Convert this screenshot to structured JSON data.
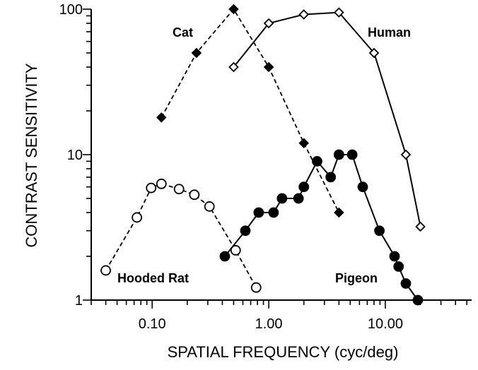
{
  "chart_data": {
    "type": "line",
    "title": "",
    "xlabel": "SPATIAL FREQUENCY (cyc/deg)",
    "ylabel": "CONTRAST SENSITIVITY",
    "xscale": "log",
    "yscale": "log",
    "xlim": [
      0.03,
      55
    ],
    "ylim": [
      1,
      100
    ],
    "xticks": [
      {
        "value": 0.1,
        "label": "0.10"
      },
      {
        "value": 1,
        "label": "1.00"
      },
      {
        "value": 10,
        "label": "10.00"
      }
    ],
    "yticks": [
      {
        "value": 1,
        "label": "1"
      },
      {
        "value": 10,
        "label": "10"
      },
      {
        "value": 100,
        "label": "100"
      }
    ],
    "grid": false,
    "series": [
      {
        "name": "Cat",
        "marker": "diamond",
        "filled": true,
        "dashed": true,
        "points": [
          [
            0.12,
            18
          ],
          [
            0.24,
            50
          ],
          [
            0.5,
            100
          ],
          [
            1.0,
            40
          ],
          [
            2.0,
            12
          ],
          [
            4.0,
            4
          ]
        ]
      },
      {
        "name": "Human",
        "marker": "diamond",
        "filled": false,
        "dashed": false,
        "points": [
          [
            0.5,
            40
          ],
          [
            1.0,
            80
          ],
          [
            2.0,
            92
          ],
          [
            4.0,
            95
          ],
          [
            8.0,
            50
          ],
          [
            15,
            10
          ],
          [
            20,
            3.2
          ]
        ]
      },
      {
        "name": "Hooded Rat",
        "marker": "circle",
        "filled": false,
        "dashed": true,
        "points": [
          [
            0.04,
            1.6
          ],
          [
            0.074,
            3.7
          ],
          [
            0.098,
            5.9
          ],
          [
            0.12,
            6.3
          ],
          [
            0.17,
            5.8
          ],
          [
            0.23,
            5.3
          ],
          [
            0.31,
            4.4
          ],
          [
            0.52,
            2.2
          ],
          [
            0.78,
            1.22
          ]
        ]
      },
      {
        "name": "Pigeon",
        "marker": "circle",
        "filled": true,
        "dashed": false,
        "points": [
          [
            0.42,
            2.0
          ],
          [
            0.63,
            3.0
          ],
          [
            0.82,
            4.0
          ],
          [
            1.1,
            4.0
          ],
          [
            1.3,
            5.0
          ],
          [
            1.8,
            5.0
          ],
          [
            2.0,
            6.0
          ],
          [
            2.6,
            9.0
          ],
          [
            3.4,
            7.0
          ],
          [
            4.0,
            10
          ],
          [
            5.2,
            10
          ],
          [
            6.4,
            6.0
          ],
          [
            8.9,
            3.0
          ],
          [
            12,
            2.0
          ],
          [
            13,
            1.7
          ],
          [
            15,
            1.3
          ],
          [
            19,
            1.0
          ]
        ]
      }
    ],
    "annotations": [
      "Cat",
      "Human",
      "Hooded Rat",
      "Pigeon"
    ],
    "legend": "none (direct labels)"
  }
}
